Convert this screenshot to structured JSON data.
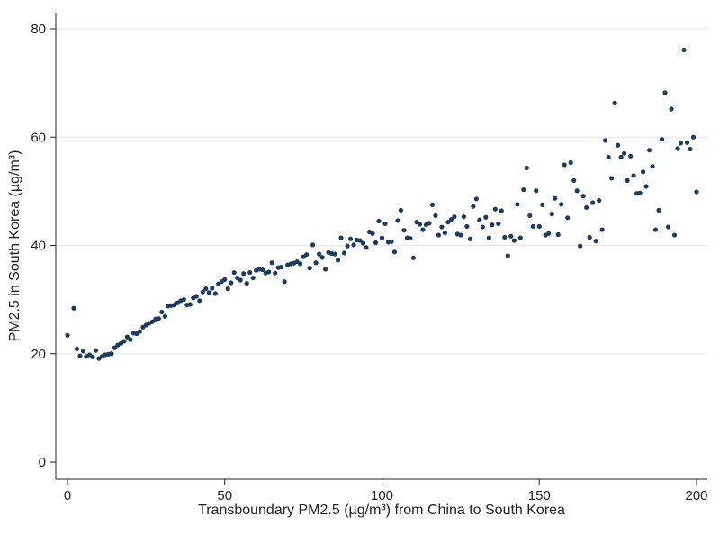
{
  "chart_data": {
    "type": "scatter",
    "title": "",
    "xlabel": "Transboundary PM2.5 (µg/m³) from China to South Korea",
    "ylabel": "PM2.5 in South Korea (µg/m³)",
    "xlim": [
      0,
      200
    ],
    "ylim": [
      0,
      80
    ],
    "xticks": [
      0,
      50,
      100,
      150,
      200
    ],
    "yticks": [
      0,
      20,
      40,
      60,
      80
    ],
    "grid": "horizontal",
    "legend": "none",
    "marker_color": "#1f3b5c",
    "points": [
      [
        0,
        23.4
      ],
      [
        2,
        28.4
      ],
      [
        3,
        20.9
      ],
      [
        4,
        19.6
      ],
      [
        5,
        20.5
      ],
      [
        6,
        19.5
      ],
      [
        7,
        19.8
      ],
      [
        8,
        19.4
      ],
      [
        9,
        20.6
      ],
      [
        10,
        19.1
      ],
      [
        11,
        19.5
      ],
      [
        12,
        19.8
      ],
      [
        13,
        19.9
      ],
      [
        14,
        20.0
      ],
      [
        15,
        21.1
      ],
      [
        16,
        21.6
      ],
      [
        17,
        21.9
      ],
      [
        18,
        22.3
      ],
      [
        19,
        23.1
      ],
      [
        20,
        22.6
      ],
      [
        21,
        23.8
      ],
      [
        22,
        23.7
      ],
      [
        23,
        24.1
      ],
      [
        24,
        24.9
      ],
      [
        25,
        25.3
      ],
      [
        26,
        25.6
      ],
      [
        27,
        25.9
      ],
      [
        28,
        26.4
      ],
      [
        29,
        26.5
      ],
      [
        30,
        27.7
      ],
      [
        31,
        26.9
      ],
      [
        32,
        28.8
      ],
      [
        33,
        28.9
      ],
      [
        34,
        29.0
      ],
      [
        35,
        29.4
      ],
      [
        36,
        29.8
      ],
      [
        37,
        30.0
      ],
      [
        38,
        29.0
      ],
      [
        39,
        29.1
      ],
      [
        40,
        30.3
      ],
      [
        41,
        30.6
      ],
      [
        42,
        29.8
      ],
      [
        43,
        31.4
      ],
      [
        44,
        32.0
      ],
      [
        45,
        31.3
      ],
      [
        46,
        32.1
      ],
      [
        47,
        31.1
      ],
      [
        48,
        32.9
      ],
      [
        49,
        33.3
      ],
      [
        50,
        33.7
      ],
      [
        51,
        32.0
      ],
      [
        52,
        33.1
      ],
      [
        53,
        35.0
      ],
      [
        54,
        34.0
      ],
      [
        55,
        33.6
      ],
      [
        56,
        34.8
      ],
      [
        57,
        33.0
      ],
      [
        58,
        35.0
      ],
      [
        59,
        34.0
      ],
      [
        60,
        35.4
      ],
      [
        61,
        35.6
      ],
      [
        62,
        35.5
      ],
      [
        63,
        34.9
      ],
      [
        64,
        35.1
      ],
      [
        65,
        36.8
      ],
      [
        66,
        34.9
      ],
      [
        67,
        35.9
      ],
      [
        68,
        36.0
      ],
      [
        69,
        33.3
      ],
      [
        70,
        36.4
      ],
      [
        71,
        36.6
      ],
      [
        72,
        36.7
      ],
      [
        73,
        37.0
      ],
      [
        74,
        36.6
      ],
      [
        75,
        37.9
      ],
      [
        76,
        38.3
      ],
      [
        77,
        35.8
      ],
      [
        78,
        40.1
      ],
      [
        79,
        36.8
      ],
      [
        80,
        38.4
      ],
      [
        81,
        37.8
      ],
      [
        82,
        35.6
      ],
      [
        83,
        38.7
      ],
      [
        84,
        38.5
      ],
      [
        85,
        38.4
      ],
      [
        86,
        37.3
      ],
      [
        87,
        41.4
      ],
      [
        88,
        38.6
      ],
      [
        89,
        39.9
      ],
      [
        90,
        41.2
      ],
      [
        91,
        40.1
      ],
      [
        92,
        41.0
      ],
      [
        93,
        40.9
      ],
      [
        94,
        40.4
      ],
      [
        95,
        39.6
      ],
      [
        96,
        42.5
      ],
      [
        97,
        42.2
      ],
      [
        98,
        40.5
      ],
      [
        99,
        44.5
      ],
      [
        100,
        41.4
      ],
      [
        101,
        44.0
      ],
      [
        102,
        40.6
      ],
      [
        103,
        40.7
      ],
      [
        104,
        38.8
      ],
      [
        105,
        44.6
      ],
      [
        106,
        46.5
      ],
      [
        107,
        42.8
      ],
      [
        108,
        41.4
      ],
      [
        109,
        41.3
      ],
      [
        110,
        37.7
      ],
      [
        111,
        44.3
      ],
      [
        112,
        43.9
      ],
      [
        113,
        42.9
      ],
      [
        114,
        43.8
      ],
      [
        115,
        44.1
      ],
      [
        116,
        47.5
      ],
      [
        117,
        45.5
      ],
      [
        118,
        41.9
      ],
      [
        119,
        43.4
      ],
      [
        120,
        42.3
      ],
      [
        121,
        44.3
      ],
      [
        122,
        44.8
      ],
      [
        123,
        45.3
      ],
      [
        124,
        42.1
      ],
      [
        125,
        41.9
      ],
      [
        126,
        45.3
      ],
      [
        127,
        43.5
      ],
      [
        128,
        41.2
      ],
      [
        129,
        47.2
      ],
      [
        130,
        48.6
      ],
      [
        131,
        44.7
      ],
      [
        132,
        43.4
      ],
      [
        133,
        45.2
      ],
      [
        134,
        41.4
      ],
      [
        135,
        43.8
      ],
      [
        136,
        46.7
      ],
      [
        137,
        44.0
      ],
      [
        138,
        46.4
      ],
      [
        139,
        41.5
      ],
      [
        140,
        38.1
      ],
      [
        141,
        41.7
      ],
      [
        142,
        40.9
      ],
      [
        143,
        47.6
      ],
      [
        144,
        41.4
      ],
      [
        145,
        50.3
      ],
      [
        146,
        54.3
      ],
      [
        147,
        45.5
      ],
      [
        148,
        43.5
      ],
      [
        149,
        50.1
      ],
      [
        150,
        43.5
      ],
      [
        151,
        47.5
      ],
      [
        152,
        41.9
      ],
      [
        153,
        42.2
      ],
      [
        154,
        45.8
      ],
      [
        155,
        48.7
      ],
      [
        156,
        42.0
      ],
      [
        157,
        47.6
      ],
      [
        158,
        54.9
      ],
      [
        159,
        45.1
      ],
      [
        160,
        55.3
      ],
      [
        161,
        52.0
      ],
      [
        162,
        50.1
      ],
      [
        163,
        39.9
      ],
      [
        164,
        49.1
      ],
      [
        165,
        47.0
      ],
      [
        166,
        41.5
      ],
      [
        167,
        47.9
      ],
      [
        168,
        40.8
      ],
      [
        169,
        48.3
      ],
      [
        170,
        42.9
      ],
      [
        171,
        59.4
      ],
      [
        172,
        56.3
      ],
      [
        173,
        52.4
      ],
      [
        174,
        66.3
      ],
      [
        175,
        58.5
      ],
      [
        176,
        56.3
      ],
      [
        177,
        57.0
      ],
      [
        178,
        52.0
      ],
      [
        179,
        56.5
      ],
      [
        180,
        52.9
      ],
      [
        181,
        49.6
      ],
      [
        182,
        49.7
      ],
      [
        183,
        53.6
      ],
      [
        184,
        50.9
      ],
      [
        185,
        57.6
      ],
      [
        186,
        54.6
      ],
      [
        187,
        42.9
      ],
      [
        188,
        46.5
      ],
      [
        189,
        59.6
      ],
      [
        190,
        68.2
      ],
      [
        191,
        43.4
      ],
      [
        192,
        65.2
      ],
      [
        193,
        41.9
      ],
      [
        194,
        57.9
      ],
      [
        195,
        58.9
      ],
      [
        196,
        76.1
      ],
      [
        197,
        59.0
      ],
      [
        198,
        57.8
      ],
      [
        199,
        60.0
      ],
      [
        200,
        49.9
      ]
    ]
  }
}
